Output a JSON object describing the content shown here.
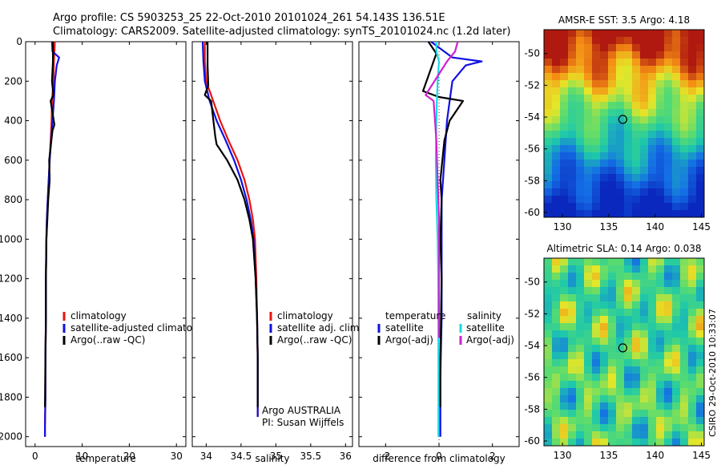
{
  "header": {
    "line1": "Argo profile: CS 5903253_25 22-Oct-2010 20101024_261 54.143S 136.51E",
    "line2": "Climatology: CARS2009. Satellite-adjusted climatology: synTS_20101024.nc (1.2d later)"
  },
  "side_text": "CSIRO 29-Oct-2010 10:33:07",
  "colors": {
    "clim": "#e8130f",
    "sat": "#1010e0",
    "argo": "#000000",
    "sal_sat": "#18d8e8",
    "sal_argo": "#d020d0"
  },
  "chart_data": [
    {
      "id": "temperature",
      "type": "line",
      "xlabel": "temperature",
      "xlim": [
        -2,
        32
      ],
      "xticks": [
        0,
        10,
        20,
        30
      ],
      "ylim": [
        0,
        2050
      ],
      "yticks": [
        0,
        200,
        400,
        600,
        800,
        1000,
        1200,
        1400,
        1600,
        1800,
        2000
      ],
      "legend": [
        "climatology",
        "satellite-adjusted climatology",
        "Argo(..raw -QC)"
      ],
      "legend_location": "lower-middle",
      "series": [
        {
          "name": "climatology",
          "color_key": "clim",
          "x": [
            4.2,
            4.0,
            3.9,
            3.6,
            3.5,
            3.3,
            3.1,
            2.9,
            2.7,
            2.5,
            2.4,
            2.3,
            2.3,
            2.2,
            2.2,
            2.1,
            2.1
          ],
          "y": [
            0,
            100,
            200,
            300,
            400,
            500,
            600,
            700,
            800,
            900,
            1000,
            1200,
            1400,
            1600,
            1800,
            1950,
            2000
          ]
        },
        {
          "name": "satellite-adjusted climatology",
          "color_key": "sat",
          "x": [
            3.6,
            3.7,
            5.1,
            4.6,
            4.2,
            4.0,
            3.7,
            3.4,
            3.1,
            2.9,
            2.7,
            2.5,
            2.4,
            2.3,
            2.3,
            2.2,
            2.2,
            2.1,
            2.1
          ],
          "y": [
            0,
            50,
            80,
            120,
            200,
            300,
            400,
            500,
            600,
            700,
            800,
            900,
            1000,
            1200,
            1400,
            1600,
            1800,
            1950,
            2000
          ]
        },
        {
          "name": "Argo(..raw -QC)",
          "color_key": "argo",
          "x": [
            3.8,
            3.8,
            3.6,
            3.9,
            3.3,
            4.1,
            3.7,
            3.0,
            3.1,
            2.8,
            2.6,
            2.4,
            2.3,
            2.3,
            2.2,
            2.1,
            2.1
          ],
          "y": [
            0,
            100,
            200,
            270,
            300,
            420,
            450,
            600,
            700,
            800,
            900,
            1000,
            1200,
            1400,
            1600,
            1850,
            1850
          ]
        }
      ]
    },
    {
      "id": "salinity",
      "type": "line",
      "xlabel": "salinity",
      "xlim": [
        33.8,
        36.1
      ],
      "xticks": [
        34,
        34.5,
        35,
        35.5,
        36
      ],
      "ylim": [
        0,
        2050
      ],
      "legend": [
        "climatology",
        "satellite adj. clim.",
        "Argo(..raw -QC)"
      ],
      "legend_location": "lower-middle",
      "annotations": [
        "Argo AUSTRALIA",
        "PI: Susan Wijffels"
      ],
      "series": [
        {
          "name": "climatology",
          "color_key": "clim",
          "x": [
            33.98,
            33.98,
            34.0,
            34.1,
            34.2,
            34.32,
            34.45,
            34.55,
            34.62,
            34.67,
            34.7,
            34.72,
            34.73,
            34.74,
            34.74
          ],
          "y": [
            0,
            100,
            200,
            300,
            400,
            500,
            600,
            700,
            800,
            900,
            1000,
            1200,
            1400,
            1600,
            1900
          ]
        },
        {
          "name": "satellite adj. clim.",
          "color_key": "sat",
          "x": [
            33.95,
            33.96,
            33.98,
            34.05,
            34.15,
            34.28,
            34.4,
            34.5,
            34.58,
            34.64,
            34.68,
            34.71,
            34.73,
            34.74,
            34.74
          ],
          "y": [
            0,
            100,
            200,
            300,
            400,
            500,
            600,
            700,
            800,
            900,
            1000,
            1200,
            1400,
            1600,
            1900
          ]
        },
        {
          "name": "Argo(..raw -QC)",
          "color_key": "argo",
          "x": [
            34.02,
            34.02,
            34.03,
            33.98,
            34.07,
            34.13,
            34.15,
            34.3,
            34.45,
            34.55,
            34.62,
            34.67,
            34.71,
            34.73,
            34.74,
            34.74
          ],
          "y": [
            0,
            120,
            220,
            270,
            300,
            480,
            520,
            600,
            700,
            800,
            900,
            1000,
            1200,
            1400,
            1600,
            1850
          ]
        }
      ]
    },
    {
      "id": "difference",
      "type": "line",
      "xlabel": "difference from climatology",
      "xlim": [
        -3,
        3
      ],
      "xticks": [
        -2,
        0,
        2
      ],
      "ylim": [
        0,
        2050
      ],
      "legend_temperature_header": "temperature",
      "legend_salinity_header": "salinity",
      "legend": [
        "satellite",
        "Argo(-adj)",
        "satellite",
        "Argo(-adj)"
      ],
      "legend_location": "lower-middle",
      "series": [
        {
          "name": "temperature satellite",
          "color_key": "sat",
          "x": [
            -0.3,
            0.5,
            1.6,
            1.0,
            0.5,
            0.4,
            0.3,
            0.2,
            0.1,
            0.1,
            0.1,
            0.1,
            0.05,
            0.05
          ],
          "y": [
            0,
            80,
            100,
            120,
            200,
            300,
            400,
            600,
            800,
            1000,
            1200,
            1400,
            1700,
            2000
          ]
        },
        {
          "name": "temperature Argo(-adj)",
          "color_key": "argo",
          "x": [
            -0.4,
            -0.1,
            -0.6,
            0.0,
            0.9,
            0.4,
            0.2,
            0.05,
            0.1,
            0.05,
            0.1,
            0.05,
            0.05
          ],
          "y": [
            0,
            60,
            250,
            280,
            300,
            400,
            500,
            700,
            800,
            1000,
            1200,
            1600,
            1850
          ]
        },
        {
          "name": "salinity satellite",
          "color_key": "sal_sat",
          "x": [
            -0.1,
            -0.1,
            0.0,
            -0.05,
            -0.08,
            -0.1,
            -0.12,
            -0.1,
            -0.05,
            -0.03,
            -0.02,
            -0.02
          ],
          "y": [
            0,
            50,
            100,
            200,
            300,
            400,
            600,
            800,
            1000,
            1200,
            1600,
            2000
          ]
        },
        {
          "name": "salinity Argo(-adj)",
          "color_key": "sal_argo",
          "x": [
            0.7,
            0.6,
            0.3,
            -0.5,
            -0.2,
            -0.1,
            -0.05,
            0.0,
            0.0,
            0.0
          ],
          "y": [
            0,
            50,
            100,
            270,
            300,
            500,
            700,
            900,
            1200,
            1500
          ]
        }
      ]
    }
  ],
  "maps": [
    {
      "id": "sst",
      "title": "AMSR-E SST: 3.5 Argo: 4.18",
      "xticks": [
        130,
        135,
        140,
        145
      ],
      "yticks": [
        -50,
        -52,
        -54,
        -56,
        -58,
        -60
      ],
      "xlim": [
        128,
        145.3
      ],
      "ylim": [
        -60.3,
        -48.5
      ],
      "marker": [
        136.51,
        -54.143
      ]
    },
    {
      "id": "sla",
      "title": "Altimetric SLA: 0.14 Argo: 0.038",
      "xticks": [
        130,
        135,
        140,
        145
      ],
      "yticks": [
        -50,
        -52,
        -54,
        -56,
        -58,
        -60
      ],
      "xlim": [
        128,
        145.3
      ],
      "ylim": [
        -60.3,
        -48.5
      ],
      "marker": [
        136.51,
        -54.143
      ]
    }
  ]
}
